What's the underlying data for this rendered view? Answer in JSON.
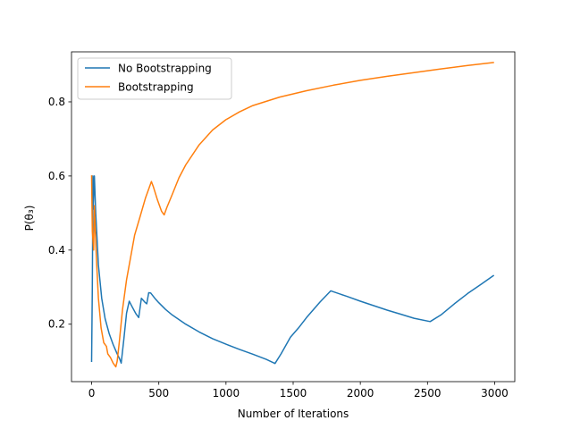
{
  "chart_data": {
    "type": "line",
    "title": "",
    "xlabel": "Number of Iterations",
    "ylabel": "P(θ₃)",
    "xlim": [
      -150,
      3150
    ],
    "ylim": [
      0.045,
      0.935
    ],
    "xticks": [
      0,
      500,
      1000,
      1500,
      2000,
      2500,
      3000
    ],
    "yticks": [
      0.2,
      0.4,
      0.6,
      0.8
    ],
    "xtick_labels": [
      "0",
      "500",
      "1000",
      "1500",
      "2000",
      "2500",
      "3000"
    ],
    "ytick_labels": [
      "0.2",
      "0.4",
      "0.6",
      "0.8"
    ],
    "grid": false,
    "legend_position": "upper-left",
    "series": [
      {
        "name": "No Bootstrapping",
        "color": "#1f77b4",
        "points": [
          [
            0,
            0.1
          ],
          [
            5,
            0.3
          ],
          [
            10,
            0.6
          ],
          [
            12,
            0.51
          ],
          [
            20,
            0.6
          ],
          [
            30,
            0.5
          ],
          [
            50,
            0.36
          ],
          [
            75,
            0.27
          ],
          [
            100,
            0.215
          ],
          [
            130,
            0.175
          ],
          [
            160,
            0.145
          ],
          [
            190,
            0.12
          ],
          [
            210,
            0.105
          ],
          [
            220,
            0.095
          ],
          [
            240,
            0.16
          ],
          [
            260,
            0.23
          ],
          [
            280,
            0.262
          ],
          [
            300,
            0.248
          ],
          [
            330,
            0.228
          ],
          [
            350,
            0.218
          ],
          [
            370,
            0.27
          ],
          [
            395,
            0.26
          ],
          [
            410,
            0.255
          ],
          [
            425,
            0.285
          ],
          [
            440,
            0.284
          ],
          [
            470,
            0.27
          ],
          [
            500,
            0.258
          ],
          [
            550,
            0.24
          ],
          [
            600,
            0.225
          ],
          [
            700,
            0.2
          ],
          [
            800,
            0.179
          ],
          [
            900,
            0.161
          ],
          [
            1000,
            0.146
          ],
          [
            1100,
            0.132
          ],
          [
            1200,
            0.119
          ],
          [
            1300,
            0.105
          ],
          [
            1365,
            0.094
          ],
          [
            1410,
            0.12
          ],
          [
            1480,
            0.165
          ],
          [
            1540,
            0.19
          ],
          [
            1600,
            0.218
          ],
          [
            1700,
            0.26
          ],
          [
            1780,
            0.29
          ],
          [
            1900,
            0.275
          ],
          [
            2000,
            0.262
          ],
          [
            2100,
            0.25
          ],
          [
            2200,
            0.238
          ],
          [
            2300,
            0.227
          ],
          [
            2400,
            0.216
          ],
          [
            2520,
            0.207
          ],
          [
            2600,
            0.225
          ],
          [
            2700,
            0.255
          ],
          [
            2800,
            0.283
          ],
          [
            2900,
            0.308
          ],
          [
            2990,
            0.331
          ]
        ]
      },
      {
        "name": "Bootstrapping",
        "color": "#ff7f0e",
        "points": [
          [
            0,
            0.6
          ],
          [
            5,
            0.45
          ],
          [
            15,
            0.4
          ],
          [
            20,
            0.52
          ],
          [
            35,
            0.38
          ],
          [
            50,
            0.27
          ],
          [
            70,
            0.19
          ],
          [
            90,
            0.15
          ],
          [
            100,
            0.145
          ],
          [
            110,
            0.14
          ],
          [
            120,
            0.12
          ],
          [
            140,
            0.11
          ],
          [
            160,
            0.095
          ],
          [
            180,
            0.085
          ],
          [
            190,
            0.1
          ],
          [
            205,
            0.15
          ],
          [
            230,
            0.24
          ],
          [
            260,
            0.32
          ],
          [
            290,
            0.38
          ],
          [
            320,
            0.44
          ],
          [
            360,
            0.49
          ],
          [
            400,
            0.54
          ],
          [
            445,
            0.585
          ],
          [
            460,
            0.57
          ],
          [
            490,
            0.535
          ],
          [
            520,
            0.505
          ],
          [
            540,
            0.495
          ],
          [
            560,
            0.515
          ],
          [
            600,
            0.55
          ],
          [
            650,
            0.595
          ],
          [
            700,
            0.63
          ],
          [
            800,
            0.684
          ],
          [
            900,
            0.724
          ],
          [
            1000,
            0.752
          ],
          [
            1100,
            0.773
          ],
          [
            1200,
            0.79
          ],
          [
            1400,
            0.813
          ],
          [
            1600,
            0.83
          ],
          [
            1800,
            0.845
          ],
          [
            2000,
            0.858
          ],
          [
            2200,
            0.869
          ],
          [
            2400,
            0.879
          ],
          [
            2600,
            0.889
          ],
          [
            2800,
            0.898
          ],
          [
            2990,
            0.906
          ]
        ]
      }
    ]
  }
}
